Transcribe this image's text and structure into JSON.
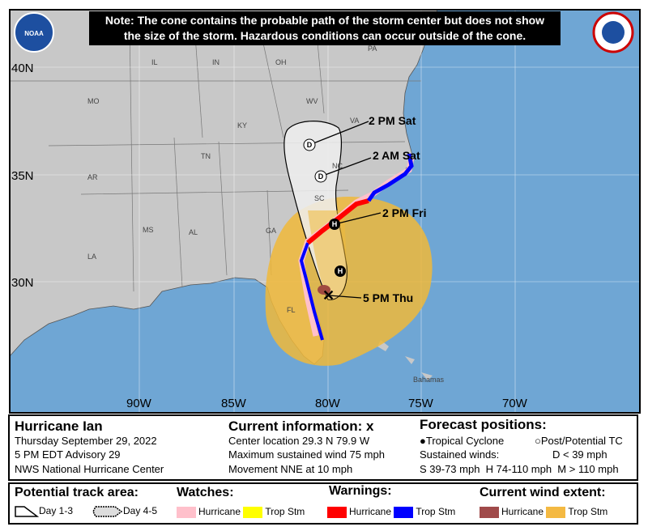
{
  "note": {
    "line1": "Note: The cone contains the probable path of the storm center but does not show",
    "line2": "the size of the storm. Hazardous conditions can occur outside of the cone."
  },
  "logos": {
    "left": "NOAA",
    "right": "NATIONAL WEATHER SERVICE"
  },
  "map": {
    "lat_labels": [
      "40N",
      "35N",
      "30N"
    ],
    "lon_labels": [
      "90W",
      "85W",
      "80W",
      "75W",
      "70W"
    ],
    "states": [
      "IL",
      "IN",
      "OH",
      "PA",
      "MO",
      "WV",
      "KY",
      "VA",
      "TN",
      "NC",
      "AR",
      "SC",
      "MS",
      "AL",
      "GA",
      "LA",
      "FL"
    ],
    "places": [
      "Bahamas"
    ],
    "forecast_labels": [
      "2 PM Sat",
      "2 AM Sat",
      "2 PM Fri",
      "5 PM Thu"
    ],
    "markers": [
      "D",
      "D",
      "H",
      "H"
    ],
    "colors": {
      "ocean": "#6fa6d4",
      "land": "#c8c8c8",
      "cone": "#eeeeee",
      "trop_storm_extent": "#f0b93a",
      "hurricane_extent": "#a04a40",
      "hurricane_warning": "#ff0000",
      "trop_storm_warning": "#0000ff",
      "hurricane_watch": "#ffc0cb"
    }
  },
  "info": {
    "title": "Hurricane Ian",
    "date": "Thursday September 29, 2022",
    "advisory": "5 PM EDT Advisory 29",
    "center": "NWS National Hurricane Center",
    "current_heading": "Current information:",
    "current_symbol": "x",
    "location": "Center location 29.3 N 79.9 W",
    "wind": "Maximum sustained wind 75 mph",
    "movement": "Movement NNE at 10 mph",
    "forecast_heading": "Forecast positions:",
    "tc": "Tropical Cyclone",
    "ptc": "Post/Potential TC",
    "sustained": "Sustained winds:",
    "d": "D < 39 mph",
    "shm": "S 39-73 mph  H 74-110 mph  M > 110 mph"
  },
  "legend": {
    "track_heading": "Potential track area:",
    "day13": "Day 1-3",
    "day45": "Day 4-5",
    "watches_heading": "Watches:",
    "watch_hurricane": "Hurricane",
    "watch_ts": "Trop Stm",
    "warnings_heading": "Warnings:",
    "warn_hurricane": "Hurricane",
    "warn_ts": "Trop Stm",
    "wind_heading": "Current wind extent:",
    "wind_hurricane": "Hurricane",
    "wind_ts": "Trop Stm",
    "colors": {
      "watch_hurricane": "#ffc0cb",
      "watch_ts": "#ffff00",
      "warn_hurricane": "#ff0000",
      "warn_ts": "#0000ff",
      "wind_hurricane": "#a04a4a",
      "wind_ts": "#f4b942"
    }
  }
}
